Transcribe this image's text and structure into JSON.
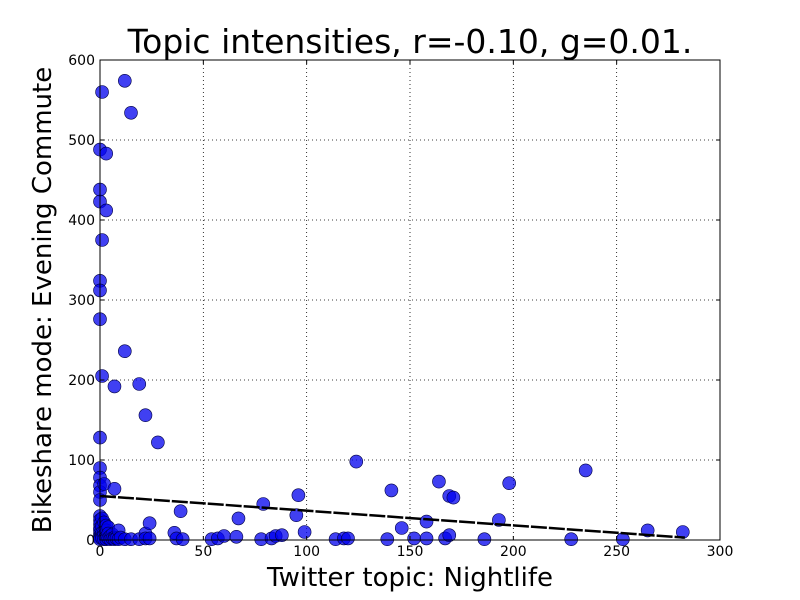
{
  "chart_data": {
    "type": "scatter",
    "title": "Topic intensities,   r=-0.10, g=0.01.",
    "xlabel": "Twitter topic: Nightlife",
    "ylabel": "Bikeshare mode: Evening Commute",
    "xlim": [
      0,
      300
    ],
    "ylim": [
      0,
      600
    ],
    "xticks": [
      0,
      50,
      100,
      150,
      200,
      250,
      300
    ],
    "yticks": [
      0,
      100,
      200,
      300,
      400,
      500,
      600
    ],
    "grid": true,
    "marker_color": "#0000ee",
    "marker_edge_color": "#000044",
    "fit_line_color": "#000000",
    "fit_line": {
      "x": [
        0,
        283
      ],
      "y": [
        55,
        3
      ]
    },
    "points": [
      [
        0,
        90
      ],
      [
        0,
        128
      ],
      [
        0,
        438
      ],
      [
        0,
        423
      ],
      [
        0,
        488
      ],
      [
        0,
        324
      ],
      [
        0,
        312
      ],
      [
        0,
        276
      ],
      [
        0,
        78
      ],
      [
        0,
        68
      ],
      [
        0,
        60
      ],
      [
        0,
        50
      ],
      [
        0,
        30
      ],
      [
        0,
        25
      ],
      [
        0,
        20
      ],
      [
        0,
        15
      ],
      [
        0,
        12
      ],
      [
        0,
        8
      ],
      [
        0,
        5
      ],
      [
        0,
        3
      ],
      [
        0,
        1
      ],
      [
        1,
        560
      ],
      [
        1,
        375
      ],
      [
        1,
        205
      ],
      [
        1,
        27
      ],
      [
        1,
        17
      ],
      [
        1,
        9
      ],
      [
        1,
        4
      ],
      [
        1,
        2
      ],
      [
        2,
        70
      ],
      [
        2,
        22
      ],
      [
        2,
        10
      ],
      [
        2,
        6
      ],
      [
        2,
        1
      ],
      [
        3,
        483
      ],
      [
        3,
        412
      ],
      [
        3,
        18
      ],
      [
        3,
        12
      ],
      [
        3,
        4
      ],
      [
        3,
        1
      ],
      [
        4,
        16
      ],
      [
        4,
        8
      ],
      [
        4,
        2
      ],
      [
        5,
        5
      ],
      [
        5,
        1
      ],
      [
        6,
        7
      ],
      [
        6,
        2
      ],
      [
        7,
        64
      ],
      [
        7,
        192
      ],
      [
        7,
        3
      ],
      [
        7,
        1
      ],
      [
        8,
        2
      ],
      [
        9,
        12
      ],
      [
        9,
        1
      ],
      [
        10,
        3
      ],
      [
        12,
        574
      ],
      [
        12,
        236
      ],
      [
        12,
        1
      ],
      [
        15,
        534
      ],
      [
        15,
        1
      ],
      [
        19,
        195
      ],
      [
        19,
        1
      ],
      [
        22,
        156
      ],
      [
        22,
        8
      ],
      [
        22,
        2
      ],
      [
        24,
        21
      ],
      [
        24,
        2
      ],
      [
        28,
        122
      ],
      [
        36,
        9
      ],
      [
        37,
        2
      ],
      [
        39,
        36
      ],
      [
        40,
        1
      ],
      [
        54,
        1
      ],
      [
        57,
        2
      ],
      [
        60,
        5
      ],
      [
        66,
        4
      ],
      [
        67,
        27
      ],
      [
        78,
        1
      ],
      [
        79,
        45
      ],
      [
        83,
        2
      ],
      [
        85,
        5
      ],
      [
        88,
        6
      ],
      [
        95,
        31
      ],
      [
        96,
        56
      ],
      [
        99,
        10
      ],
      [
        114,
        1
      ],
      [
        118,
        2
      ],
      [
        120,
        2
      ],
      [
        124,
        98
      ],
      [
        139,
        1
      ],
      [
        141,
        62
      ],
      [
        146,
        15
      ],
      [
        152,
        2
      ],
      [
        158,
        23
      ],
      [
        158,
        2
      ],
      [
        164,
        73
      ],
      [
        167,
        2
      ],
      [
        169,
        55
      ],
      [
        169,
        6
      ],
      [
        171,
        53
      ],
      [
        186,
        1
      ],
      [
        193,
        25
      ],
      [
        198,
        71
      ],
      [
        228,
        1
      ],
      [
        235,
        87
      ],
      [
        253,
        1
      ],
      [
        265,
        12
      ],
      [
        282,
        10
      ]
    ]
  }
}
